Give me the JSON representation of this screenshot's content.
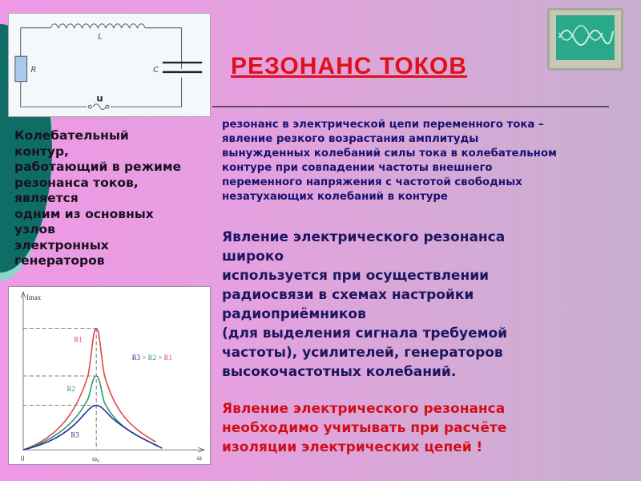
{
  "title": "РЕЗОНАНС ТОКОВ",
  "circuit": {
    "L": "L",
    "R": "R",
    "C": "C",
    "u": "u"
  },
  "definition": [
    "резонанс в электрической цепи переменного тока –",
    "явление резкого возрастания амплитуды",
    "вынужденных колебаний  силы тока в колебательном",
    "контуре при совпадении частоты внешнего",
    "переменного напряжения с частотой свободных",
    "незатухающих колебаний в контуре"
  ],
  "left_text": [
    "Колебательный",
    "контур,",
    "работающий в режиме",
    "резонанса токов,",
    "является",
    "одним из основных",
    "узлов",
    "электронных",
    "генераторов"
  ],
  "usage": [
    "Явление электрического резонанса",
    "широко",
    "используется при осуществлении",
    "радиосвязи в схемах настройки",
    "радиоприёмников",
    "(для выделения сигнала требуемой",
    "частоты), усилителей, генераторов",
    "высокочастотных колебаний."
  ],
  "warning": [
    "Явление электрического резонанса",
    "необходимо учитывать при расчёте",
    "изоляции электрических цепей !"
  ],
  "graph": {
    "ylabel": "Imax",
    "xlabel": "ω",
    "origin": "0",
    "x0": "ω₀",
    "r1": "R1",
    "r2": "R2",
    "r3": "R3",
    "legend": {
      "a": "R3",
      "gt1": " > ",
      "b": "R2",
      "gt2": " > ",
      "c": "R1"
    },
    "colors": {
      "R1": "#e04848",
      "R2": "#2e9a6a",
      "R3": "#2a2ea0"
    }
  }
}
